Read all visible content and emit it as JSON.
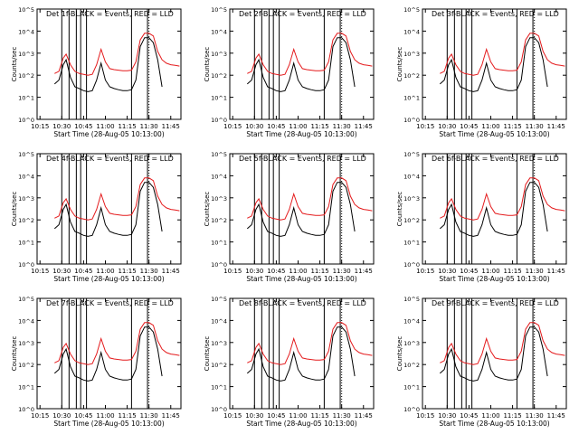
{
  "figure": {
    "xlabel": "Start Time (28-Aug-05 10:13:00)",
    "ylabel": "Counts/sec",
    "x_ticks": [
      "10:15",
      "10:30",
      "10:45",
      "11:00",
      "11:15",
      "11:30",
      "11:45"
    ],
    "y_ticks": [
      "10^0",
      "10^1",
      "10^2",
      "10^3",
      "10^4",
      "10^5"
    ]
  },
  "colors": {
    "events": "#000000",
    "lld": "#e41a1c",
    "frame": "#000000"
  },
  "chart_data": [
    {
      "type": "line",
      "title": "Det 1f-BLACK = Events, RED = LLD",
      "xlim": [
        "10:13",
        "11:52"
      ],
      "ylim": [
        1,
        100000
      ],
      "yscale": "log",
      "markers": [
        "10:30",
        "10:35",
        "10:40",
        "10:43",
        "10:47",
        "11:18",
        "11:29",
        "11:30"
      ],
      "x": [
        "10:25",
        "10:28",
        "10:31",
        "10:33",
        "10:36",
        "10:39",
        "10:42",
        "10:45",
        "10:48",
        "10:51",
        "10:54",
        "10:57",
        "11:00",
        "11:03",
        "11:06",
        "11:09",
        "11:12",
        "11:15",
        "11:18",
        "11:21",
        "11:24",
        "11:27",
        "11:30",
        "11:33",
        "11:36",
        "11:39",
        "11:42",
        "11:45",
        "11:48",
        "11:51"
      ],
      "series": [
        {
          "name": "BLACK = Events",
          "values": [
            40,
            60,
            300,
            500,
            80,
            30,
            25,
            20,
            18,
            20,
            60,
            350,
            60,
            30,
            25,
            22,
            20,
            20,
            22,
            60,
            2000,
            5000,
            5000,
            3000,
            500,
            30,
            null,
            null,
            null,
            null
          ]
        },
        {
          "name": "RED = LLD",
          "values": [
            120,
            150,
            600,
            900,
            300,
            150,
            120,
            110,
            100,
            110,
            300,
            1500,
            400,
            200,
            180,
            170,
            160,
            160,
            170,
            400,
            4000,
            8000,
            8000,
            6000,
            1200,
            500,
            350,
            300,
            280,
            260
          ]
        }
      ]
    },
    {
      "type": "line",
      "title": "Det 2f-BLACK = Events, RED = LLD",
      "xlim": [
        "10:13",
        "11:52"
      ],
      "ylim": [
        1,
        100000
      ],
      "yscale": "log",
      "markers": [
        "10:30",
        "10:35",
        "10:40",
        "10:43",
        "10:47",
        "11:18",
        "11:29",
        "11:30"
      ],
      "x": [
        "10:25",
        "10:28",
        "10:31",
        "10:33",
        "10:36",
        "10:39",
        "10:42",
        "10:45",
        "10:48",
        "10:51",
        "10:54",
        "10:57",
        "11:00",
        "11:03",
        "11:06",
        "11:09",
        "11:12",
        "11:15",
        "11:18",
        "11:21",
        "11:24",
        "11:27",
        "11:30",
        "11:33",
        "11:36",
        "11:39",
        "11:42",
        "11:45",
        "11:48",
        "11:51"
      ],
      "series": [
        {
          "name": "BLACK = Events",
          "values": [
            40,
            60,
            300,
            500,
            80,
            30,
            25,
            20,
            18,
            20,
            60,
            350,
            60,
            30,
            25,
            22,
            20,
            20,
            22,
            60,
            2000,
            5000,
            5000,
            3000,
            500,
            30,
            null,
            null,
            null,
            null
          ]
        },
        {
          "name": "RED = LLD",
          "values": [
            120,
            150,
            600,
            900,
            300,
            150,
            120,
            110,
            100,
            110,
            300,
            1500,
            400,
            200,
            180,
            170,
            160,
            160,
            170,
            400,
            4000,
            8000,
            8000,
            6000,
            1200,
            500,
            350,
            300,
            280,
            260
          ]
        }
      ]
    },
    {
      "type": "line",
      "title": "Det 3f-BLACK = Events, RED = LLD",
      "xlim": [
        "10:13",
        "11:52"
      ],
      "ylim": [
        1,
        100000
      ],
      "yscale": "log",
      "markers": [
        "10:30",
        "10:35",
        "10:40",
        "10:43",
        "10:47",
        "11:18",
        "11:29",
        "11:30"
      ],
      "x": [
        "10:25",
        "10:28",
        "10:31",
        "10:33",
        "10:36",
        "10:39",
        "10:42",
        "10:45",
        "10:48",
        "10:51",
        "10:54",
        "10:57",
        "11:00",
        "11:03",
        "11:06",
        "11:09",
        "11:12",
        "11:15",
        "11:18",
        "11:21",
        "11:24",
        "11:27",
        "11:30",
        "11:33",
        "11:36",
        "11:39",
        "11:42",
        "11:45",
        "11:48",
        "11:51"
      ],
      "series": [
        {
          "name": "BLACK = Events",
          "values": [
            40,
            60,
            300,
            500,
            80,
            30,
            25,
            20,
            18,
            20,
            60,
            350,
            60,
            30,
            25,
            22,
            20,
            20,
            22,
            60,
            2000,
            5000,
            5000,
            3000,
            500,
            30,
            null,
            null,
            null,
            null
          ]
        },
        {
          "name": "RED = LLD",
          "values": [
            120,
            150,
            600,
            900,
            300,
            150,
            120,
            110,
            100,
            110,
            300,
            1500,
            400,
            200,
            180,
            170,
            160,
            160,
            170,
            400,
            4000,
            8000,
            8000,
            6000,
            1200,
            500,
            350,
            300,
            280,
            260
          ]
        }
      ]
    },
    {
      "type": "line",
      "title": "Det 4f-BLACK = Events, RED = LLD",
      "xlim": [
        "10:13",
        "11:52"
      ],
      "ylim": [
        1,
        100000
      ],
      "yscale": "log",
      "markers": [
        "10:30",
        "10:35",
        "10:40",
        "10:43",
        "10:47",
        "11:18",
        "11:29",
        "11:30"
      ],
      "x": [
        "10:25",
        "10:28",
        "10:31",
        "10:33",
        "10:36",
        "10:39",
        "10:42",
        "10:45",
        "10:48",
        "10:51",
        "10:54",
        "10:57",
        "11:00",
        "11:03",
        "11:06",
        "11:09",
        "11:12",
        "11:15",
        "11:18",
        "11:21",
        "11:24",
        "11:27",
        "11:30",
        "11:33",
        "11:36",
        "11:39",
        "11:42",
        "11:45",
        "11:48",
        "11:51"
      ],
      "series": [
        {
          "name": "BLACK = Events",
          "values": [
            40,
            60,
            300,
            500,
            80,
            30,
            25,
            20,
            18,
            20,
            60,
            350,
            60,
            30,
            25,
            22,
            20,
            20,
            22,
            60,
            2000,
            5000,
            5000,
            3000,
            500,
            30,
            null,
            null,
            null,
            null
          ]
        },
        {
          "name": "RED = LLD",
          "values": [
            120,
            150,
            600,
            900,
            300,
            150,
            120,
            110,
            100,
            110,
            300,
            1500,
            400,
            200,
            180,
            170,
            160,
            160,
            170,
            400,
            4000,
            8000,
            8000,
            6000,
            1200,
            500,
            350,
            300,
            280,
            260
          ]
        }
      ]
    },
    {
      "type": "line",
      "title": "Det 5f-BLACK = Events, RED = LLD",
      "xlim": [
        "10:13",
        "11:52"
      ],
      "ylim": [
        1,
        100000
      ],
      "yscale": "log",
      "markers": [
        "10:30",
        "10:35",
        "10:40",
        "10:43",
        "10:47",
        "11:18",
        "11:29",
        "11:30"
      ],
      "x": [
        "10:25",
        "10:28",
        "10:31",
        "10:33",
        "10:36",
        "10:39",
        "10:42",
        "10:45",
        "10:48",
        "10:51",
        "10:54",
        "10:57",
        "11:00",
        "11:03",
        "11:06",
        "11:09",
        "11:12",
        "11:15",
        "11:18",
        "11:21",
        "11:24",
        "11:27",
        "11:30",
        "11:33",
        "11:36",
        "11:39",
        "11:42",
        "11:45",
        "11:48",
        "11:51"
      ],
      "series": [
        {
          "name": "BLACK = Events",
          "values": [
            40,
            60,
            300,
            500,
            80,
            30,
            25,
            20,
            18,
            20,
            60,
            350,
            60,
            30,
            25,
            22,
            20,
            20,
            22,
            60,
            2000,
            5000,
            5000,
            3000,
            500,
            30,
            null,
            null,
            null,
            null
          ]
        },
        {
          "name": "RED = LLD",
          "values": [
            120,
            150,
            600,
            900,
            300,
            150,
            120,
            110,
            100,
            110,
            300,
            1500,
            400,
            200,
            180,
            170,
            160,
            160,
            170,
            400,
            4000,
            8000,
            8000,
            6000,
            1200,
            500,
            350,
            300,
            280,
            260
          ]
        }
      ]
    },
    {
      "type": "line",
      "title": "Det 6f-BLACK = Events, RED = LLD",
      "xlim": [
        "10:13",
        "11:52"
      ],
      "ylim": [
        1,
        100000
      ],
      "yscale": "log",
      "markers": [
        "10:30",
        "10:35",
        "10:40",
        "10:43",
        "10:47",
        "11:18",
        "11:29",
        "11:30"
      ],
      "x": [
        "10:25",
        "10:28",
        "10:31",
        "10:33",
        "10:36",
        "10:39",
        "10:42",
        "10:45",
        "10:48",
        "10:51",
        "10:54",
        "10:57",
        "11:00",
        "11:03",
        "11:06",
        "11:09",
        "11:12",
        "11:15",
        "11:18",
        "11:21",
        "11:24",
        "11:27",
        "11:30",
        "11:33",
        "11:36",
        "11:39",
        "11:42",
        "11:45",
        "11:48",
        "11:51"
      ],
      "series": [
        {
          "name": "BLACK = Events",
          "values": [
            40,
            60,
            300,
            500,
            80,
            30,
            25,
            20,
            18,
            20,
            60,
            350,
            60,
            30,
            25,
            22,
            20,
            20,
            22,
            60,
            2000,
            5000,
            5000,
            3000,
            500,
            30,
            null,
            null,
            null,
            null
          ]
        },
        {
          "name": "RED = LLD",
          "values": [
            120,
            150,
            600,
            900,
            300,
            150,
            120,
            110,
            100,
            110,
            300,
            1500,
            400,
            200,
            180,
            170,
            160,
            160,
            170,
            400,
            4000,
            8000,
            8000,
            6000,
            1200,
            500,
            350,
            300,
            280,
            260
          ]
        }
      ]
    },
    {
      "type": "line",
      "title": "Det 7f-BLACK = Events, RED = LLD",
      "xlim": [
        "10:13",
        "11:52"
      ],
      "ylim": [
        1,
        100000
      ],
      "yscale": "log",
      "markers": [
        "10:30",
        "10:35",
        "10:40",
        "10:43",
        "10:47",
        "11:18",
        "11:29",
        "11:30"
      ],
      "x": [
        "10:25",
        "10:28",
        "10:31",
        "10:33",
        "10:36",
        "10:39",
        "10:42",
        "10:45",
        "10:48",
        "10:51",
        "10:54",
        "10:57",
        "11:00",
        "11:03",
        "11:06",
        "11:09",
        "11:12",
        "11:15",
        "11:18",
        "11:21",
        "11:24",
        "11:27",
        "11:30",
        "11:33",
        "11:36",
        "11:39",
        "11:42",
        "11:45",
        "11:48",
        "11:51"
      ],
      "series": [
        {
          "name": "BLACK = Events",
          "values": [
            40,
            60,
            300,
            500,
            80,
            30,
            25,
            20,
            18,
            20,
            60,
            350,
            60,
            30,
            25,
            22,
            20,
            20,
            22,
            60,
            2000,
            5000,
            5000,
            3000,
            500,
            30,
            null,
            null,
            null,
            null
          ]
        },
        {
          "name": "RED = LLD",
          "values": [
            120,
            150,
            600,
            900,
            300,
            150,
            120,
            110,
            100,
            110,
            300,
            1500,
            400,
            200,
            180,
            170,
            160,
            160,
            170,
            400,
            4000,
            8000,
            8000,
            6000,
            1200,
            500,
            350,
            300,
            280,
            260
          ]
        }
      ]
    },
    {
      "type": "line",
      "title": "Det 8f-BLACK = Events, RED = LLD",
      "xlim": [
        "10:13",
        "11:52"
      ],
      "ylim": [
        1,
        100000
      ],
      "yscale": "log",
      "markers": [
        "10:30",
        "10:35",
        "10:40",
        "10:43",
        "10:47",
        "11:18",
        "11:29",
        "11:30"
      ],
      "x": [
        "10:25",
        "10:28",
        "10:31",
        "10:33",
        "10:36",
        "10:39",
        "10:42",
        "10:45",
        "10:48",
        "10:51",
        "10:54",
        "10:57",
        "11:00",
        "11:03",
        "11:06",
        "11:09",
        "11:12",
        "11:15",
        "11:18",
        "11:21",
        "11:24",
        "11:27",
        "11:30",
        "11:33",
        "11:36",
        "11:39",
        "11:42",
        "11:45",
        "11:48",
        "11:51"
      ],
      "series": [
        {
          "name": "BLACK = Events",
          "values": [
            40,
            60,
            300,
            500,
            80,
            30,
            25,
            20,
            18,
            20,
            60,
            350,
            60,
            30,
            25,
            22,
            20,
            20,
            22,
            60,
            2000,
            5000,
            5000,
            3000,
            500,
            30,
            null,
            null,
            null,
            null
          ]
        },
        {
          "name": "RED = LLD",
          "values": [
            120,
            150,
            600,
            900,
            300,
            150,
            120,
            110,
            100,
            110,
            300,
            1500,
            400,
            200,
            180,
            170,
            160,
            160,
            170,
            400,
            4000,
            8000,
            8000,
            6000,
            1200,
            500,
            350,
            300,
            280,
            260
          ]
        }
      ]
    },
    {
      "type": "line",
      "title": "Det 9f-BLACK = Events, RED = LLD",
      "xlim": [
        "10:13",
        "11:52"
      ],
      "ylim": [
        1,
        100000
      ],
      "yscale": "log",
      "markers": [
        "10:30",
        "10:35",
        "10:40",
        "10:43",
        "10:47",
        "11:18",
        "11:29",
        "11:30"
      ],
      "x": [
        "10:25",
        "10:28",
        "10:31",
        "10:33",
        "10:36",
        "10:39",
        "10:42",
        "10:45",
        "10:48",
        "10:51",
        "10:54",
        "10:57",
        "11:00",
        "11:03",
        "11:06",
        "11:09",
        "11:12",
        "11:15",
        "11:18",
        "11:21",
        "11:24",
        "11:27",
        "11:30",
        "11:33",
        "11:36",
        "11:39",
        "11:42",
        "11:45",
        "11:48",
        "11:51"
      ],
      "series": [
        {
          "name": "BLACK = Events",
          "values": [
            40,
            60,
            300,
            500,
            80,
            30,
            25,
            20,
            18,
            20,
            60,
            350,
            60,
            30,
            25,
            22,
            20,
            20,
            22,
            60,
            2000,
            5000,
            5000,
            3000,
            500,
            30,
            null,
            null,
            null,
            null
          ]
        },
        {
          "name": "RED = LLD",
          "values": [
            120,
            150,
            600,
            900,
            300,
            150,
            120,
            110,
            100,
            110,
            300,
            1500,
            400,
            200,
            180,
            170,
            160,
            160,
            170,
            400,
            4000,
            8000,
            8000,
            6000,
            1200,
            500,
            350,
            300,
            280,
            260
          ]
        }
      ]
    }
  ]
}
